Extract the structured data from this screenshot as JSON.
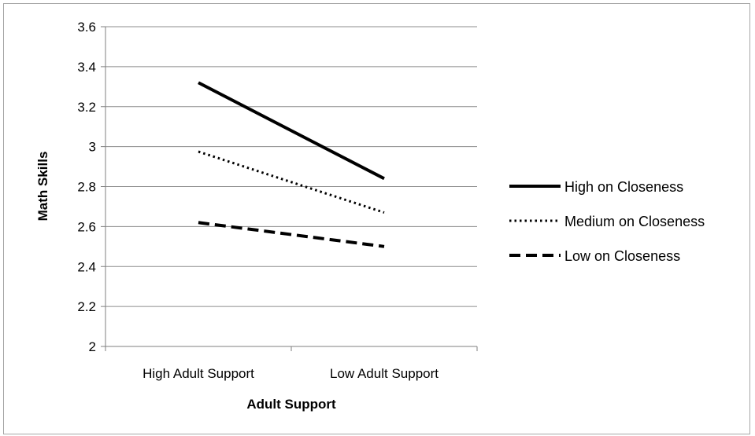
{
  "chart_data": {
    "type": "line",
    "title": "",
    "xlabel": "Adult Support",
    "ylabel": "Math Skills",
    "categories": [
      "High Adult Support",
      "Low Adult Support"
    ],
    "ylim": [
      2,
      3.6
    ],
    "yticks": [
      "2",
      "2.2",
      "2.4",
      "2.6",
      "2.8",
      "3",
      "3.2",
      "3.4",
      "3.6"
    ],
    "ytick_values": [
      2,
      2.2,
      2.4,
      2.6,
      2.8,
      3,
      3.2,
      3.4,
      3.6
    ],
    "grid": true,
    "legend_position": "right",
    "series": [
      {
        "name": "High on Closeness",
        "values": [
          3.32,
          2.84
        ],
        "style": "solid"
      },
      {
        "name": "Medium on Closeness",
        "values": [
          2.975,
          2.67
        ],
        "style": "dotted"
      },
      {
        "name": "Low on Closeness",
        "values": [
          2.62,
          2.5
        ],
        "style": "dashed"
      }
    ],
    "colors": {
      "line": "#000000",
      "grid": "#8c8c8c",
      "axis": "#7f7f7f",
      "border": "#a6a6a6"
    }
  }
}
